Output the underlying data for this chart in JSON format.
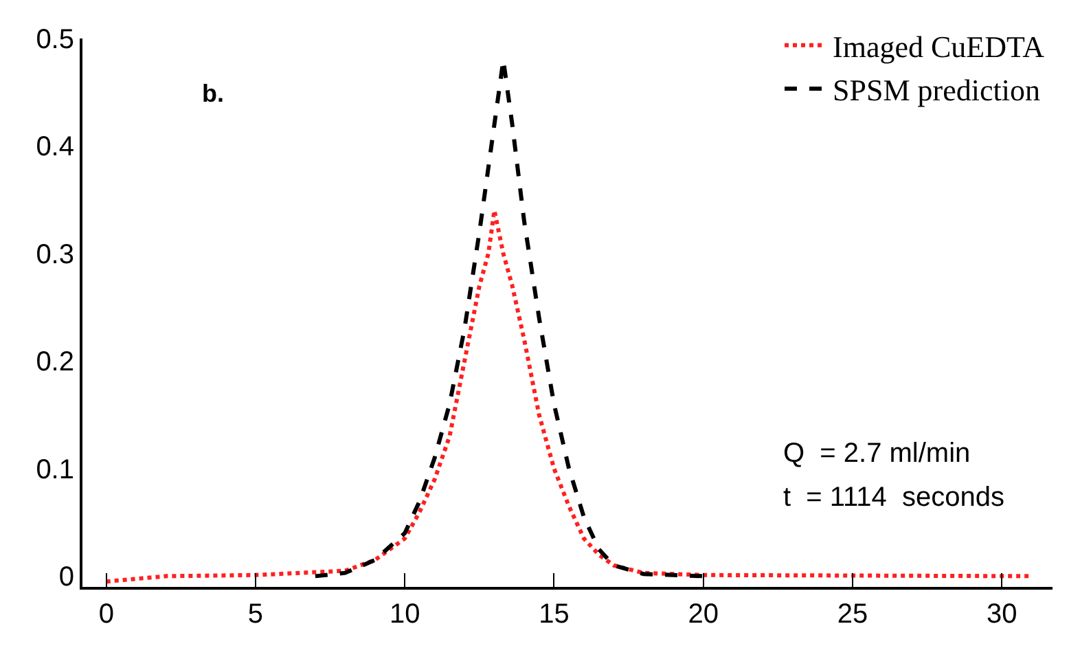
{
  "chart_data": {
    "type": "line",
    "xlim": [
      -0.8,
      31.7
    ],
    "xticks": [
      0,
      5,
      10,
      15,
      20,
      25,
      30
    ],
    "ylim": [
      -0.01,
      0.5
    ],
    "yticks": [
      0,
      0.1,
      0.2,
      0.3,
      0.4,
      0.5
    ],
    "legend": "top right",
    "marker": "none",
    "series": [
      {
        "name": "Imaged CuEDTA",
        "color": "#ff2020",
        "line_style": "dotted",
        "x": [
          0,
          2,
          5,
          8,
          9,
          10,
          10.5,
          11,
          11.5,
          12,
          12.5,
          12.8,
          13.0,
          13.3,
          13.6,
          14,
          14.5,
          15,
          15.5,
          16,
          16.5,
          17,
          18,
          20,
          31
        ],
        "values": [
          -0.005,
          0,
          0.001,
          0.005,
          0.015,
          0.035,
          0.06,
          0.09,
          0.13,
          0.2,
          0.27,
          0.3,
          0.34,
          0.3,
          0.27,
          0.22,
          0.15,
          0.1,
          0.065,
          0.035,
          0.02,
          0.01,
          0.003,
          0.001,
          0
        ]
      },
      {
        "name": "SPSM prediction",
        "color": "#000000",
        "line_style": "dashed",
        "x": [
          7,
          8,
          9,
          10,
          10.5,
          11,
          11.5,
          12,
          12.5,
          13,
          13.3,
          13.6,
          14,
          14.5,
          15,
          15.5,
          16,
          16.5,
          17,
          18,
          20
        ],
        "values": [
          0,
          0.003,
          0.015,
          0.04,
          0.07,
          0.11,
          0.16,
          0.23,
          0.32,
          0.42,
          0.48,
          0.42,
          0.33,
          0.24,
          0.16,
          0.1,
          0.055,
          0.025,
          0.01,
          0.002,
          0
        ]
      }
    ],
    "annotations": [
      "b.",
      "Q  = 2.7 ml/min",
      "t  = 1114  seconds"
    ]
  }
}
